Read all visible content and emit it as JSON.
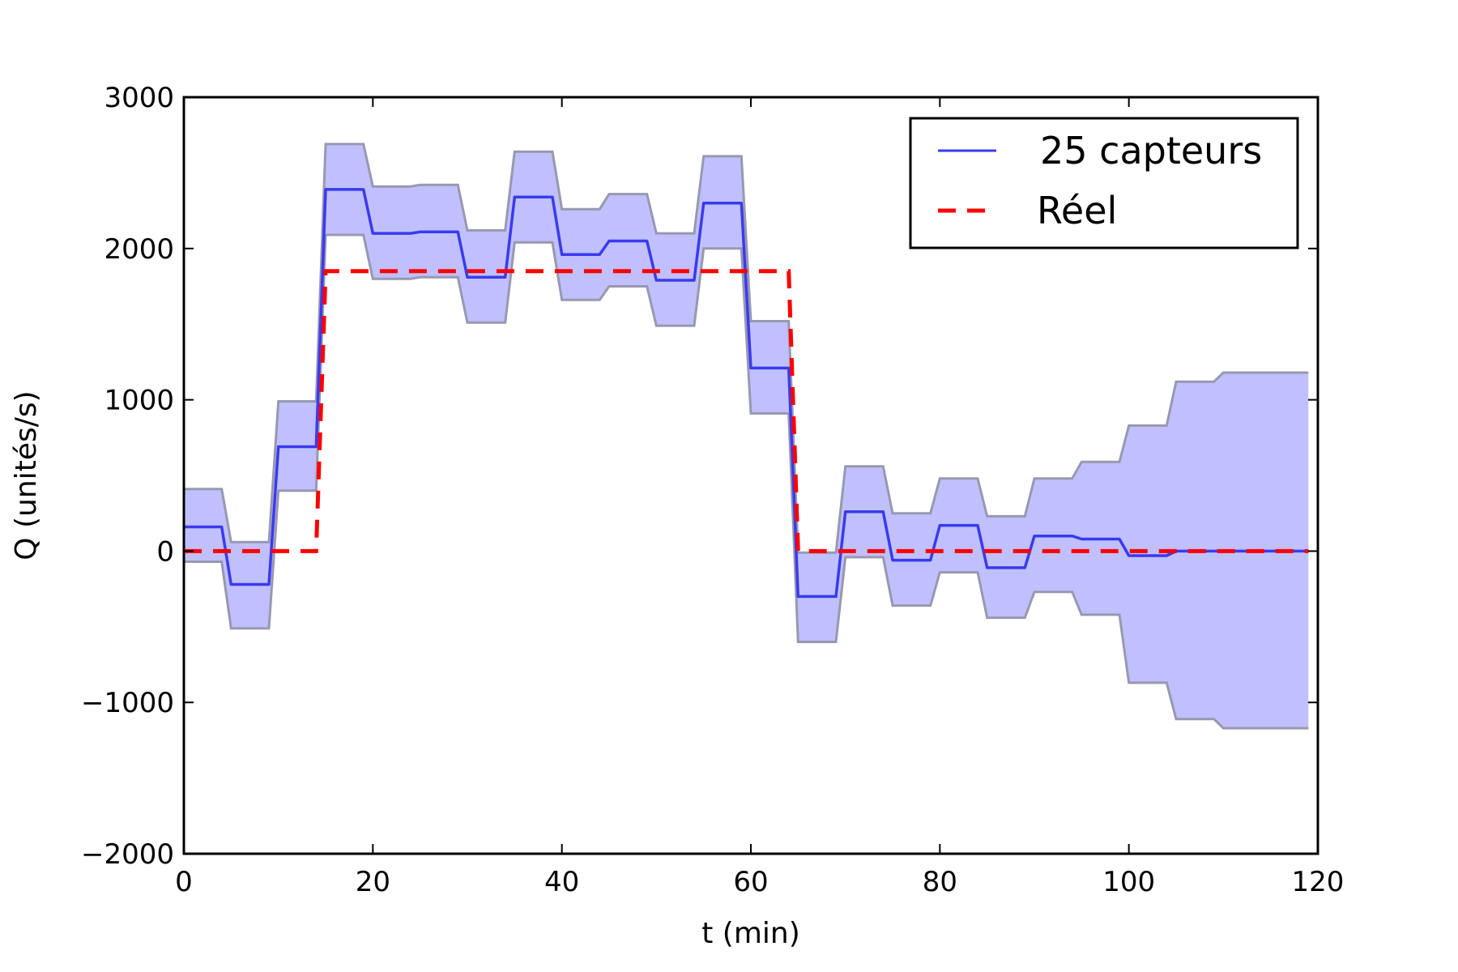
{
  "chart_data": {
    "type": "line",
    "title": "",
    "xlabel": "t (min)",
    "ylabel": "Q (unités/s)",
    "xlim": [
      0,
      120
    ],
    "ylim": [
      -2000,
      3000
    ],
    "xticks": [
      0,
      20,
      40,
      60,
      80,
      100,
      120
    ],
    "xtick_labels": [
      "0",
      "20",
      "40",
      "60",
      "80",
      "100",
      "120"
    ],
    "yticks": [
      -2000,
      -1000,
      0,
      1000,
      2000,
      3000
    ],
    "ytick_labels": [
      "−2000",
      "−1000",
      "0",
      "1000",
      "2000",
      "3000"
    ],
    "grid": false,
    "legend_position": "top-right",
    "series": [
      {
        "name": "25 capteurs",
        "color": "#3a3af0",
        "style": "solid",
        "band_color": "#c0c0ff",
        "band_edge_color": "#9898b0",
        "x": [
          0,
          4,
          5,
          9,
          10,
          14,
          15,
          19,
          20,
          24,
          25,
          29,
          30,
          34,
          35,
          39,
          40,
          44,
          45,
          49,
          50,
          54,
          55,
          59,
          60,
          64,
          65,
          69,
          70,
          74,
          75,
          79,
          80,
          84,
          85,
          89,
          90,
          94,
          95,
          99,
          100,
          104,
          105,
          109,
          110,
          119
        ],
        "y": [
          160,
          160,
          -220,
          -220,
          690,
          690,
          2390,
          2390,
          2100,
          2100,
          2110,
          2110,
          1810,
          1810,
          2340,
          2340,
          1960,
          1960,
          2050,
          2050,
          1790,
          1790,
          2300,
          2300,
          1210,
          1210,
          -300,
          -300,
          260,
          260,
          -60,
          -60,
          170,
          170,
          -110,
          -110,
          100,
          100,
          80,
          80,
          -30,
          -30,
          0,
          0,
          0,
          0
        ],
        "upper": [
          410,
          410,
          60,
          60,
          990,
          990,
          2690,
          2690,
          2410,
          2410,
          2420,
          2420,
          2120,
          2120,
          2640,
          2640,
          2260,
          2260,
          2360,
          2360,
          2100,
          2100,
          2610,
          2610,
          1520,
          1520,
          -10,
          -10,
          560,
          560,
          250,
          250,
          480,
          480,
          230,
          230,
          480,
          480,
          590,
          590,
          830,
          830,
          1120,
          1120,
          1180,
          1180
        ],
        "lower": [
          -70,
          -70,
          -510,
          -510,
          400,
          400,
          2090,
          2090,
          1800,
          1800,
          1810,
          1810,
          1510,
          1510,
          2040,
          2040,
          1660,
          1660,
          1750,
          1750,
          1490,
          1490,
          2000,
          2000,
          910,
          910,
          -600,
          -600,
          -40,
          -40,
          -360,
          -360,
          -140,
          -140,
          -440,
          -440,
          -270,
          -270,
          -420,
          -420,
          -870,
          -870,
          -1110,
          -1110,
          -1170,
          -1170
        ]
      },
      {
        "name": "Réel",
        "color": "#ff0000",
        "style": "dashed",
        "x": [
          0,
          14,
          15,
          64,
          65,
          119
        ],
        "y": [
          0,
          0,
          1850,
          1850,
          0,
          0
        ]
      }
    ]
  }
}
